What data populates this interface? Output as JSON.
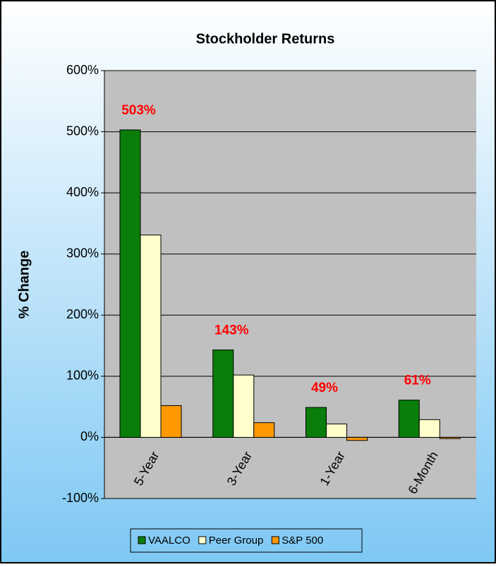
{
  "chart_data": {
    "type": "bar",
    "title": "Stockholder Returns",
    "y_label": "% Change",
    "categories": [
      "5-Year",
      "3-Year",
      "1-Year",
      "6-Month"
    ],
    "series": [
      {
        "name": "VAALCO",
        "color": "#0a7d0a",
        "values": [
          503,
          143,
          49,
          61
        ],
        "value_labels": [
          "503%",
          "143%",
          "49%",
          "61%"
        ]
      },
      {
        "name": "Peer Group",
        "color": "#ffffcc",
        "values": [
          331,
          102,
          22,
          29
        ]
      },
      {
        "name": "S&P 500",
        "color": "#ff9900",
        "values": [
          52,
          24,
          -5,
          -2
        ]
      }
    ],
    "ylim": [
      -100,
      600
    ],
    "yticks": [
      {
        "value": -100,
        "label": "-100%"
      },
      {
        "value": 0,
        "label": "0%"
      },
      {
        "value": 100,
        "label": "100%"
      },
      {
        "value": 200,
        "label": "200%"
      },
      {
        "value": 300,
        "label": "300%"
      },
      {
        "value": 400,
        "label": "400%"
      },
      {
        "value": 500,
        "label": "500%"
      },
      {
        "value": 600,
        "label": "600%"
      }
    ],
    "grid": true,
    "legend": "bottom"
  }
}
